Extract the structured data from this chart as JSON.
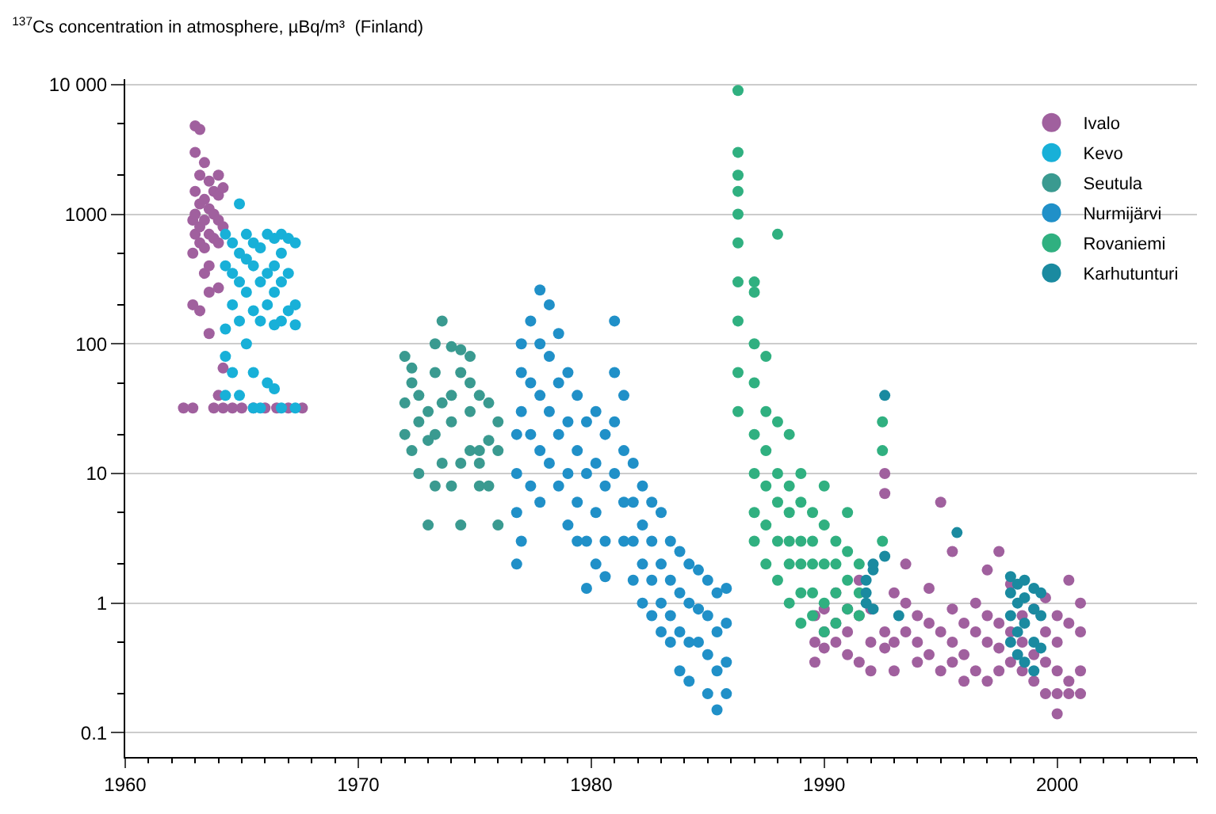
{
  "chart_data": {
    "type": "scatter",
    "title": "$^{137}$Cs concentration in atmosphere, µBq/m³  (Finland)",
    "log": "y",
    "grid": "y",
    "legend": "top right",
    "marker": "circle",
    "xlim": [
      1960,
      2006
    ],
    "ylim": [
      0.065,
      11000
    ],
    "xticks": [
      1960,
      1970,
      1980,
      1990,
      2000
    ],
    "yticks": [
      {
        "value": 10000,
        "label": "10 000"
      },
      1000,
      100,
      10,
      1,
      0.1
    ],
    "series": [
      {
        "name": "Ivalo",
        "color": "#a0609e",
        "x": [
          1962.5,
          1962.9,
          1962.9,
          1962.9,
          1962.9,
          1963.0,
          1963.0,
          1963.0,
          1963.0,
          1963.0,
          1963.2,
          1963.2,
          1963.2,
          1963.2,
          1963.2,
          1963.2,
          1963.4,
          1963.4,
          1963.4,
          1963.4,
          1963.4,
          1963.6,
          1963.6,
          1963.6,
          1963.6,
          1963.6,
          1963.6,
          1963.8,
          1963.8,
          1963.8,
          1963.8,
          1964.0,
          1964.0,
          1964.0,
          1964.0,
          1964.0,
          1964.0,
          1964.2,
          1964.2,
          1964.2,
          1964.2,
          1964.6,
          1965.0,
          1965.5,
          1966.0,
          1966.5,
          1967.0,
          1967.6,
          1989.6,
          1989.6,
          1989.6,
          1990,
          1990,
          1990,
          1990.5,
          1990.5,
          1990.5,
          1991,
          1991,
          1991,
          1991.5,
          1991.5,
          1991.5,
          1992,
          1992,
          1992,
          1992.6,
          1992.6,
          1992.6,
          1992.6,
          1993,
          1993,
          1993,
          1993.5,
          1993.5,
          1993.5,
          1994,
          1994,
          1994,
          1994.5,
          1994.5,
          1994.5,
          1995,
          1995,
          1995,
          1995.5,
          1995.5,
          1995.5,
          1995.5,
          1996,
          1996,
          1996,
          1996.5,
          1996.5,
          1996.5,
          1997,
          1997,
          1997,
          1997,
          1997.5,
          1997.5,
          1997.5,
          1997.5,
          1998,
          1998,
          1998,
          1998.5,
          1998.5,
          1998.5,
          1999,
          1999,
          1999,
          1999.5,
          1999.5,
          1999.5,
          1999.5,
          2000,
          2000,
          2000,
          2000,
          2000,
          2000.5,
          2000.5,
          2000.5,
          2000.5,
          2001,
          2001,
          2001,
          2001
        ],
        "values": [
          32,
          32,
          200,
          500,
          900,
          4800,
          3000,
          1500,
          1000,
          700,
          4500,
          2000,
          1200,
          800,
          600,
          180,
          2500,
          1300,
          900,
          550,
          350,
          1800,
          1100,
          700,
          400,
          250,
          120,
          1500,
          1000,
          650,
          32,
          2000,
          1400,
          900,
          600,
          270,
          40,
          1600,
          800,
          32,
          65,
          32,
          32,
          32,
          32,
          32,
          32,
          32,
          0.5,
          0.8,
          0.35,
          0.6,
          0.45,
          0.9,
          0.5,
          0.7,
          1.2,
          0.4,
          0.6,
          0.9,
          0.35,
          0.8,
          1.5,
          0.5,
          0.9,
          0.3,
          7,
          10,
          0.6,
          0.45,
          1.2,
          0.5,
          0.3,
          0.6,
          1,
          2,
          0.5,
          0.8,
          0.35,
          0.4,
          0.7,
          1.3,
          6,
          0.6,
          0.3,
          0.9,
          0.5,
          0.35,
          2.5,
          0.7,
          0.4,
          0.25,
          0.6,
          1,
          0.3,
          0.5,
          0.8,
          0.25,
          1.8,
          0.45,
          0.7,
          0.3,
          2.5,
          0.35,
          0.6,
          1.4,
          0.5,
          0.8,
          0.3,
          0.4,
          0.9,
          0.25,
          0.35,
          0.6,
          0.2,
          1.1,
          0.3,
          0.5,
          0.8,
          0.2,
          0.14,
          0.25,
          0.7,
          0.2,
          1.5,
          0.3,
          0.6,
          0.2,
          1
        ]
      },
      {
        "name": "Kevo",
        "color": "#18b0d8",
        "x": [
          1964.3,
          1964.3,
          1964.3,
          1964.3,
          1964.3,
          1964.6,
          1964.6,
          1964.6,
          1964.6,
          1964.9,
          1964.9,
          1964.9,
          1964.9,
          1964.9,
          1965.2,
          1965.2,
          1965.2,
          1965.2,
          1965.5,
          1965.5,
          1965.5,
          1965.5,
          1965.5,
          1965.8,
          1965.8,
          1965.8,
          1965.8,
          1966.1,
          1966.1,
          1966.1,
          1966.1,
          1966.4,
          1966.4,
          1966.4,
          1966.4,
          1966.4,
          1966.7,
          1966.7,
          1966.7,
          1966.7,
          1966.7,
          1967.0,
          1967.0,
          1967.0,
          1967.3,
          1967.3,
          1967.3,
          1967.3
        ],
        "values": [
          130,
          700,
          400,
          80,
          40,
          600,
          350,
          200,
          60,
          1200,
          500,
          300,
          150,
          40,
          700,
          450,
          250,
          100,
          600,
          400,
          180,
          60,
          32,
          550,
          300,
          150,
          32,
          700,
          350,
          200,
          50,
          650,
          400,
          250,
          140,
          45,
          700,
          500,
          300,
          150,
          32,
          650,
          350,
          180,
          600,
          200,
          140,
          32
        ]
      },
      {
        "name": "Seutula",
        "color": "#3a9a90",
        "x": [
          1972,
          1972,
          1972,
          1972.3,
          1972.3,
          1972.3,
          1972.6,
          1972.6,
          1972.6,
          1973,
          1973,
          1973,
          1973.3,
          1973.3,
          1973.3,
          1973.3,
          1973.6,
          1973.6,
          1973.6,
          1974,
          1974,
          1974,
          1974,
          1974.4,
          1974.4,
          1974.4,
          1974.4,
          1974.8,
          1974.8,
          1974.8,
          1974.8,
          1975.2,
          1975.2,
          1975.2,
          1975.2,
          1975.6,
          1975.6,
          1975.6,
          1976,
          1976,
          1976
        ],
        "values": [
          35,
          80,
          20,
          65,
          50,
          15,
          10,
          25,
          40,
          18,
          30,
          4,
          100,
          60,
          20,
          8,
          150,
          35,
          12,
          95,
          40,
          8,
          25,
          90,
          60,
          12,
          4,
          30,
          15,
          80,
          50,
          40,
          15,
          8,
          12,
          18,
          35,
          8,
          15,
          25,
          4
        ]
      },
      {
        "name": "Nurmijärvi",
        "color": "#2090c8",
        "x": [
          1976.8,
          1976.8,
          1976.8,
          1976.8,
          1977,
          1977,
          1977,
          1977,
          1977.4,
          1977.4,
          1977.4,
          1977.4,
          1977.8,
          1977.8,
          1977.8,
          1977.8,
          1977.8,
          1978.2,
          1978.2,
          1978.2,
          1978.2,
          1978.6,
          1978.6,
          1978.6,
          1978.6,
          1979,
          1979,
          1979,
          1979,
          1979.4,
          1979.4,
          1979.4,
          1979.4,
          1979.8,
          1979.8,
          1979.8,
          1979.8,
          1980.2,
          1980.2,
          1980.2,
          1980.2,
          1980.6,
          1980.6,
          1980.6,
          1980.6,
          1981,
          1981,
          1981,
          1981,
          1981.4,
          1981.4,
          1981.4,
          1981.4,
          1981.8,
          1981.8,
          1981.8,
          1981.8,
          1982.2,
          1982.2,
          1982.2,
          1982.2,
          1982.6,
          1982.6,
          1982.6,
          1982.6,
          1983,
          1983,
          1983,
          1983,
          1983.4,
          1983.4,
          1983.4,
          1983.4,
          1983.8,
          1983.8,
          1983.8,
          1983.8,
          1984.2,
          1984.2,
          1984.2,
          1984.2,
          1984.6,
          1984.6,
          1984.6,
          1985,
          1985,
          1985,
          1985,
          1985.4,
          1985.4,
          1985.4,
          1985.4,
          1985.8,
          1985.8,
          1985.8,
          1985.8
        ],
        "values": [
          2,
          5,
          10,
          20,
          30,
          60,
          100,
          3,
          50,
          150,
          8,
          20,
          260,
          100,
          40,
          15,
          6,
          200,
          80,
          30,
          12,
          120,
          50,
          20,
          8,
          60,
          25,
          10,
          4,
          40,
          15,
          6,
          3,
          25,
          10,
          3,
          1.3,
          30,
          12,
          5,
          2,
          20,
          8,
          3,
          1.6,
          150,
          60,
          25,
          10,
          40,
          15,
          6,
          3,
          12,
          6,
          3,
          1.5,
          8,
          4,
          2,
          1,
          6,
          3,
          1.5,
          0.8,
          5,
          2,
          1,
          0.6,
          3,
          1.5,
          0.8,
          0.5,
          2.5,
          1.2,
          0.6,
          0.3,
          2,
          1,
          0.5,
          0.25,
          1.8,
          0.9,
          0.5,
          1.5,
          0.8,
          0.4,
          0.2,
          1.2,
          0.6,
          0.3,
          0.15,
          1.3,
          0.7,
          0.35,
          0.2
        ]
      },
      {
        "name": "Rovaniemi",
        "color": "#30b080",
        "x": [
          1986.3,
          1986.3,
          1986.3,
          1986.3,
          1986.3,
          1986.3,
          1986.3,
          1986.3,
          1986.3,
          1986.3,
          1987,
          1987,
          1987,
          1987,
          1987,
          1987,
          1987,
          1987,
          1987.5,
          1987.5,
          1987.5,
          1987.5,
          1987.5,
          1987.5,
          1988,
          1988,
          1988,
          1988,
          1988,
          1988,
          1988.5,
          1988.5,
          1988.5,
          1988.5,
          1988.5,
          1988.5,
          1989,
          1989,
          1989,
          1989,
          1989,
          1989,
          1989.5,
          1989.5,
          1989.5,
          1989.5,
          1989.5,
          1990,
          1990,
          1990,
          1990,
          1990,
          1990.5,
          1990.5,
          1990.5,
          1990.5,
          1991,
          1991,
          1991,
          1991,
          1991.5,
          1991.5,
          1991.5,
          1992.5,
          1992.5,
          1992.5
        ],
        "values": [
          9000,
          3000,
          2000,
          1500,
          1000,
          600,
          300,
          150,
          60,
          30,
          300,
          250,
          100,
          50,
          20,
          10,
          5,
          3,
          80,
          30,
          15,
          8,
          4,
          2,
          700,
          25,
          10,
          6,
          3,
          1.5,
          20,
          8,
          5,
          3,
          2,
          1,
          10,
          6,
          3,
          2,
          1.2,
          0.7,
          5,
          3,
          2,
          1.2,
          0.8,
          8,
          4,
          2,
          1,
          0.6,
          3,
          2,
          1.2,
          0.7,
          5,
          2.5,
          1.5,
          0.9,
          2,
          1.2,
          0.8,
          25,
          15,
          3
        ]
      },
      {
        "name": "Karhutunturi",
        "color": "#1a8aa0",
        "x": [
          1991.8,
          1991.8,
          1991.8,
          1992.1,
          1992.1,
          1992.1,
          1992.6,
          1992.6,
          1993.2,
          1995.7,
          1998,
          1998,
          1998,
          1998,
          1998.3,
          1998.3,
          1998.3,
          1998.3,
          1998.6,
          1998.6,
          1998.6,
          1998.6,
          1999,
          1999,
          1999,
          1999,
          1999.3,
          1999.3,
          1999.3
        ],
        "values": [
          1,
          1.2,
          1.5,
          1.8,
          2,
          0.9,
          40,
          2.3,
          0.8,
          3.5,
          0.5,
          0.8,
          1.2,
          1.6,
          0.4,
          0.6,
          1,
          1.4,
          0.35,
          0.7,
          1.1,
          1.5,
          0.3,
          0.5,
          0.9,
          1.3,
          0.45,
          0.8,
          1.2
        ]
      }
    ]
  }
}
